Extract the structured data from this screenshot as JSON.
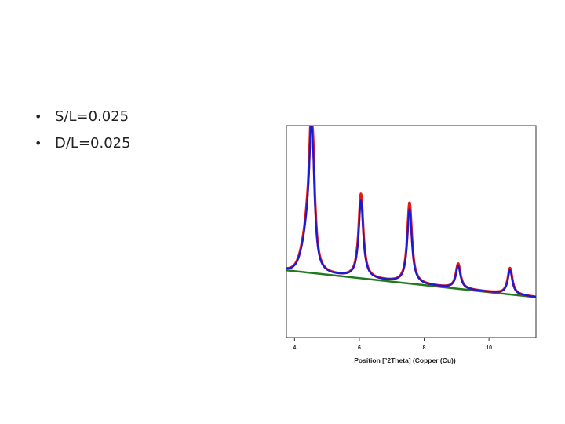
{
  "slide": {
    "bullets": [
      "S/L=0.025",
      "D/L=0.025"
    ]
  },
  "chart_data": {
    "type": "line",
    "xlabel": "Position [°2Theta] (Copper (Cu))",
    "ylabel": "",
    "xlim": [
      3.75,
      11.45
    ],
    "ylim": [
      0,
      100
    ],
    "x_ticks": [
      4,
      6,
      8,
      10
    ],
    "grid": false,
    "colors": {
      "observed": "#e01b1b",
      "calculated": "#1a1ad6",
      "background": "#1e7a1e"
    },
    "background": {
      "x": [
        3.75,
        11.45
      ],
      "y": [
        32.0,
        19.2
      ]
    },
    "peaks": [
      {
        "position": 4.55,
        "height": 100
      },
      {
        "position": 6.05,
        "height": 68
      },
      {
        "position": 7.55,
        "height": 64
      },
      {
        "position": 9.05,
        "height": 35
      },
      {
        "position": 10.65,
        "height": 33
      }
    ],
    "series": [
      {
        "key": "observed",
        "peak_scale": 1.0
      },
      {
        "key": "calculated",
        "peak_scale": 0.92
      }
    ]
  }
}
